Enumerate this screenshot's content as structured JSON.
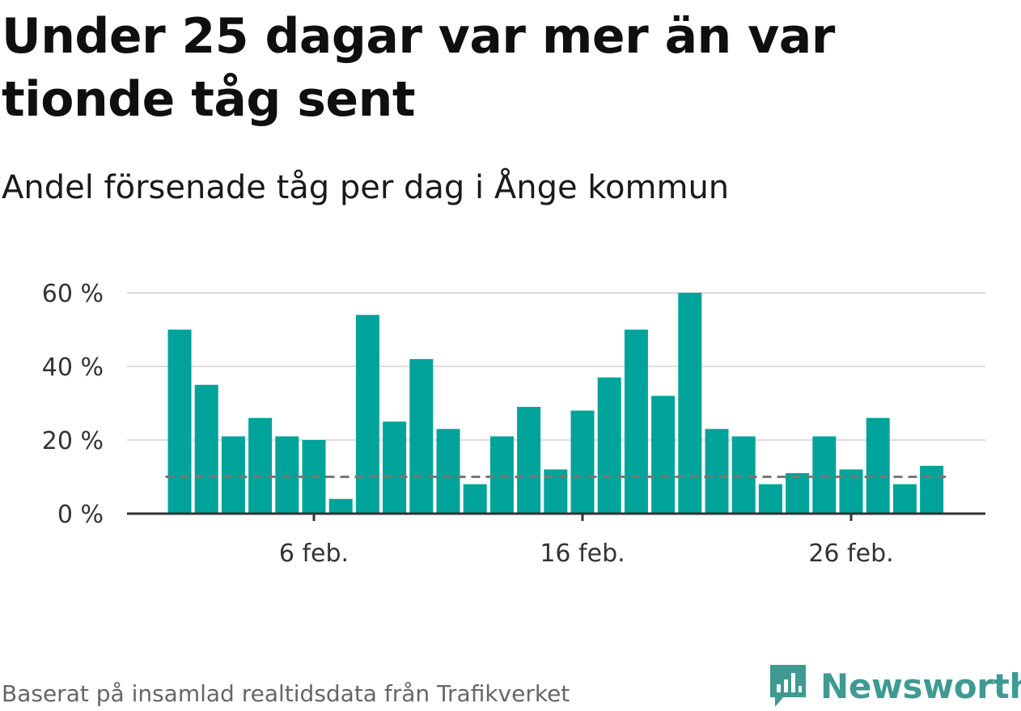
{
  "title": "Under 25 dagar var mer än var tionde tåg sent",
  "subtitle": "Andel försenade tåg per dag i Ånge kommun",
  "footer": {
    "source": "Baserat på insamlad realtidsdata från Trafikverket",
    "brand": "Newsworthy"
  },
  "colors": {
    "bar": "#00a39a",
    "reference_line": "#777777",
    "grid": "#dddddd",
    "axis": "#333333",
    "brand": "#3f9a93"
  },
  "chart_data": {
    "type": "bar",
    "title": "Under 25 dagar var mer än var tionde tåg sent",
    "subtitle": "Andel försenade tåg per dag i Ånge kommun",
    "xlabel": "",
    "ylabel": "",
    "ylim": [
      0,
      60
    ],
    "y_ticks": [
      0,
      20,
      40,
      60
    ],
    "y_tick_labels": [
      "0 %",
      "20 %",
      "40 %",
      "60 %"
    ],
    "x_tick_labels": [
      {
        "day": 6,
        "label": "6 feb."
      },
      {
        "day": 16,
        "label": "16 feb."
      },
      {
        "day": 26,
        "label": "26 feb."
      }
    ],
    "grid": true,
    "categories": [
      1,
      2,
      3,
      4,
      5,
      6,
      7,
      8,
      9,
      10,
      11,
      12,
      13,
      14,
      15,
      16,
      17,
      18,
      19,
      20,
      21,
      22,
      23,
      24,
      25,
      26,
      27,
      28,
      29
    ],
    "values": [
      50,
      35,
      21,
      26,
      21,
      20,
      4,
      54,
      25,
      42,
      23,
      8,
      21,
      29,
      12,
      28,
      37,
      50,
      32,
      60,
      23,
      21,
      8,
      11,
      21,
      12,
      26,
      8,
      13
    ],
    "reference_line": {
      "value": 10,
      "style": "dashed"
    }
  }
}
